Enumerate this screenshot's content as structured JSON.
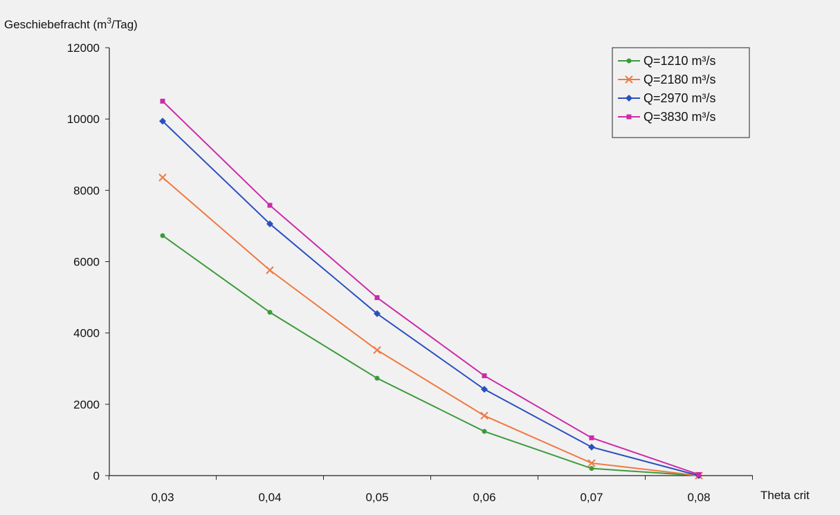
{
  "chart_data": {
    "type": "line",
    "title": "",
    "ylabel": {
      "base": "Geschiebefracht (m",
      "sup": "3",
      "tail": "/Tag)"
    },
    "xlabel": "Theta crit",
    "categories": [
      "0,03",
      "0,04",
      "0,05",
      "0,06",
      "0,07",
      "0,08"
    ],
    "x": [
      0.03,
      0.04,
      0.05,
      0.06,
      0.07,
      0.08
    ],
    "ylim": [
      0,
      12000
    ],
    "yticks": [
      0,
      2000,
      4000,
      6000,
      8000,
      10000,
      12000
    ],
    "grid": false,
    "legend_position": "top-right",
    "series": [
      {
        "name": "Q=1210 m³/s",
        "color": "#3c9a3c",
        "marker": "circle",
        "values": [
          6730,
          4580,
          2730,
          1240,
          200,
          0
        ]
      },
      {
        "name": "Q=2180 m³/s",
        "color": "#f07840",
        "marker": "x",
        "values": [
          8360,
          5760,
          3520,
          1680,
          350,
          0
        ]
      },
      {
        "name": "Q=2970 m³/s",
        "color": "#2a4fc0",
        "marker": "diamond",
        "values": [
          9940,
          7060,
          4540,
          2420,
          800,
          0
        ]
      },
      {
        "name": "Q=3830 m³/s",
        "color": "#cc2aa8",
        "marker": "square",
        "values": [
          10500,
          7580,
          4990,
          2800,
          1060,
          30
        ]
      }
    ]
  }
}
